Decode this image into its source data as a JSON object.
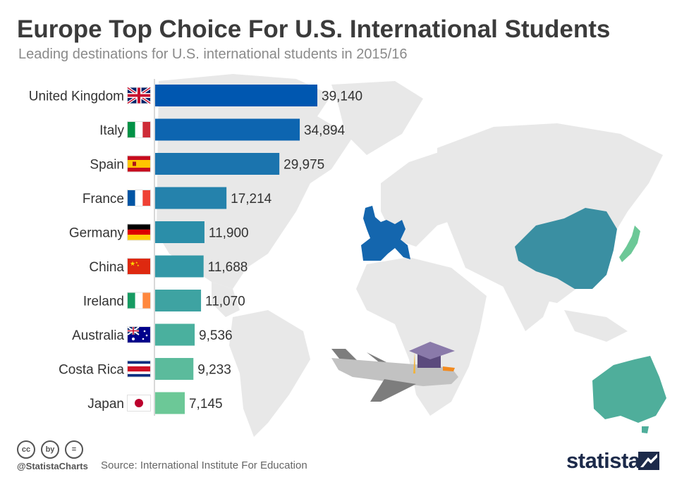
{
  "header": {
    "title": "Europe Top Choice For U.S. International Students",
    "subtitle": "Leading destinations for U.S. international students in 2015/16"
  },
  "chart_data": {
    "type": "bar",
    "orientation": "horizontal",
    "title": "Europe Top Choice For U.S. International Students",
    "subtitle": "Leading destinations for U.S. international students in 2015/16",
    "categories": [
      "United Kingdom",
      "Italy",
      "Spain",
      "France",
      "Germany",
      "China",
      "Ireland",
      "Australia",
      "Costa Rica",
      "Japan"
    ],
    "values": [
      39140,
      34894,
      29975,
      17214,
      11900,
      11688,
      11070,
      9536,
      9233,
      7145
    ],
    "value_labels": [
      "39,140",
      "34,894",
      "29,975",
      "17,214",
      "11,900",
      "11,688",
      "11,070",
      "9,536",
      "9,233",
      "7,145"
    ],
    "bar_colors": [
      "#0057b0",
      "#0d65b0",
      "#1b74ae",
      "#2582ac",
      "#2b8ea9",
      "#3398a7",
      "#3ea3a2",
      "#4ab09e",
      "#5bbb9c",
      "#6cc897"
    ],
    "xlim": [
      0,
      39140
    ],
    "grid": false,
    "legend": "none",
    "xlabel": "",
    "ylabel": ""
  },
  "flags": [
    "uk-flag-icon",
    "italy-flag-icon",
    "spain-flag-icon",
    "france-flag-icon",
    "germany-flag-icon",
    "china-flag-icon",
    "ireland-flag-icon",
    "australia-flag-icon",
    "costa-rica-flag-icon",
    "japan-flag-icon"
  ],
  "footer": {
    "handle": "@StatistaCharts",
    "source": "Source: International Institute For Education",
    "brand": "statista",
    "license_icons": [
      "cc",
      "by",
      "="
    ]
  },
  "colors": {
    "map_land": "#e8e8e8",
    "europe_highlight": "#1466ae",
    "china_highlight": "#3a8fa2",
    "australia_highlight": "#4fae9b",
    "japan_highlight": "#6cc897"
  }
}
